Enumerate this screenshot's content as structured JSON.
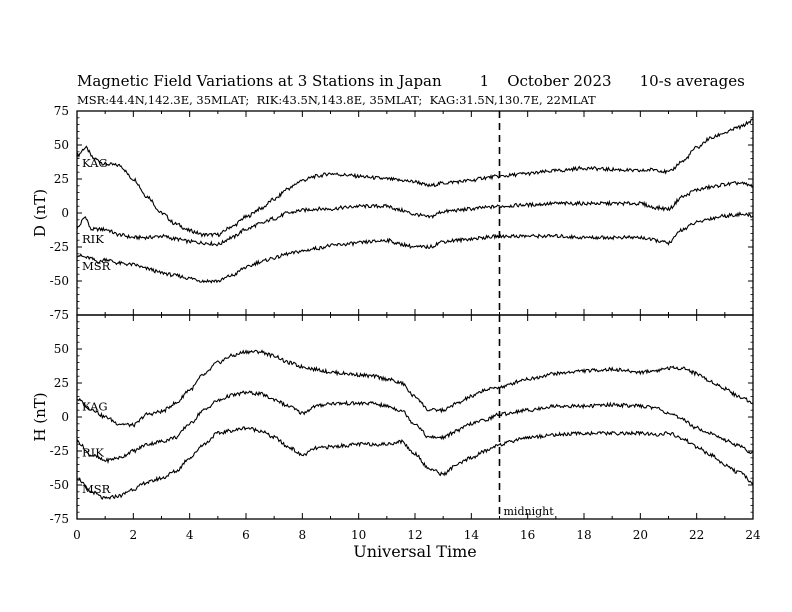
{
  "title": {
    "main": "Magnetic Field Variations at 3 Stations in Japan",
    "day": "1",
    "month_year": "October 2023",
    "averaging": "10-s averages"
  },
  "subtitle": "MSR:44.4N,142.3E, 35MLAT;  RIK:43.5N,143.8E, 35MLAT;  KAG:31.5N,130.7E, 22MLAT",
  "chart_data": [
    {
      "type": "line",
      "panel": "top",
      "ylabel": "D (nT)",
      "xlim": [
        0,
        24
      ],
      "ylim": [
        -75,
        75
      ],
      "yticks": [
        75,
        50,
        25,
        0,
        -25,
        -50,
        -75
      ],
      "series": [
        {
          "name": "KAG",
          "x": [
            0,
            0.3,
            0.6,
            1.0,
            1.5,
            2.0,
            2.5,
            3.0,
            3.5,
            4.0,
            4.5,
            5.0,
            5.5,
            6.0,
            6.5,
            7.0,
            7.5,
            8.0,
            8.5,
            9.0,
            9.5,
            10.0,
            10.5,
            11.0,
            11.5,
            12.0,
            12.5,
            13.0,
            13.5,
            14.0,
            14.5,
            15.0,
            16.0,
            17.0,
            18.0,
            19.0,
            20.0,
            20.5,
            21.0,
            21.5,
            22.0,
            22.5,
            23.0,
            23.5,
            24.0
          ],
          "y": [
            42,
            48,
            40,
            36,
            35,
            25,
            12,
            0,
            -8,
            -13,
            -16,
            -16,
            -10,
            -3,
            3,
            10,
            18,
            24,
            27,
            29,
            28,
            27,
            26,
            25,
            24,
            23,
            20,
            22,
            23,
            24,
            26,
            27,
            29,
            31,
            33,
            32,
            31,
            32,
            30,
            38,
            48,
            55,
            59,
            63,
            68
          ]
        },
        {
          "name": "RIK",
          "x": [
            0,
            0.3,
            0.5,
            1.0,
            1.5,
            2.0,
            2.5,
            3.0,
            3.5,
            4.0,
            4.5,
            5.0,
            5.5,
            6.0,
            6.5,
            7.0,
            7.5,
            8.0,
            8.5,
            9.0,
            9.5,
            10.0,
            10.5,
            11.0,
            11.5,
            12.0,
            12.5,
            13.0,
            13.5,
            14.0,
            14.5,
            15.0,
            16.0,
            17.0,
            18.0,
            19.0,
            20.0,
            20.5,
            21.0,
            21.5,
            22.0,
            22.5,
            23.0,
            23.5,
            24.0
          ],
          "y": [
            -11,
            -3,
            -12,
            -12,
            -16,
            -18,
            -18,
            -17,
            -19,
            -21,
            -22,
            -23,
            -18,
            -12,
            -8,
            -4,
            0,
            2,
            3,
            3,
            4,
            5,
            5,
            5,
            2,
            -1,
            -3,
            1,
            2,
            3,
            4,
            5,
            6,
            7,
            7,
            7,
            7,
            4,
            3,
            12,
            17,
            19,
            21,
            22,
            20
          ]
        },
        {
          "name": "MSR",
          "x": [
            0,
            0.4,
            0.8,
            1.0,
            1.5,
            2.0,
            2.5,
            3.0,
            3.5,
            4.0,
            4.5,
            5.0,
            5.5,
            6.0,
            6.5,
            7.0,
            7.5,
            8.0,
            8.5,
            9.0,
            9.5,
            10.0,
            10.5,
            11.0,
            11.5,
            12.0,
            12.5,
            13.0,
            13.5,
            14.0,
            14.5,
            15.0,
            16.0,
            17.0,
            18.0,
            19.0,
            20.0,
            20.5,
            21.0,
            21.5,
            22.0,
            22.5,
            23.0,
            23.5,
            24.0
          ],
          "y": [
            -31,
            -33,
            -36,
            -34,
            -37,
            -38,
            -41,
            -44,
            -46,
            -48,
            -50,
            -50,
            -46,
            -40,
            -36,
            -33,
            -30,
            -28,
            -26,
            -24,
            -23,
            -22,
            -21,
            -20,
            -23,
            -25,
            -25,
            -21,
            -20,
            -19,
            -18,
            -17,
            -17,
            -17,
            -18,
            -18,
            -18,
            -20,
            -22,
            -12,
            -7,
            -4,
            -2,
            -1,
            -2
          ]
        }
      ]
    },
    {
      "type": "line",
      "panel": "bottom",
      "ylabel": "H (nT)",
      "xlabel": "Universal Time",
      "xlim": [
        0,
        24
      ],
      "ylim": [
        -75,
        75
      ],
      "xticks": [
        0,
        2,
        4,
        6,
        8,
        10,
        12,
        14,
        16,
        18,
        20,
        22,
        24
      ],
      "yticks": [
        75,
        50,
        25,
        0,
        -25,
        -50,
        -75
      ],
      "annotation": {
        "x": 15,
        "label": "midnight",
        "style": "dashed"
      },
      "series": [
        {
          "name": "KAG",
          "x": [
            0,
            0.5,
            1.0,
            1.5,
            2.0,
            2.5,
            3.0,
            3.5,
            4.0,
            4.5,
            5.0,
            5.5,
            6.0,
            6.5,
            7.0,
            7.5,
            8.0,
            8.5,
            9.0,
            9.5,
            10.0,
            10.5,
            11.0,
            11.5,
            12.0,
            12.5,
            13.0,
            13.5,
            14.0,
            14.5,
            15.0,
            16.0,
            17.0,
            18.0,
            19.0,
            20.0,
            20.5,
            21.0,
            21.5,
            22.0,
            22.5,
            23.0,
            23.5,
            24.0
          ],
          "y": [
            13,
            6,
            0,
            -5,
            -6,
            2,
            4,
            10,
            20,
            31,
            40,
            45,
            48,
            48,
            45,
            40,
            37,
            35,
            33,
            32,
            31,
            30,
            28,
            25,
            15,
            5,
            5,
            10,
            15,
            20,
            22,
            28,
            32,
            34,
            35,
            33,
            34,
            36,
            36,
            32,
            26,
            21,
            15,
            11
          ]
        },
        {
          "name": "RIK",
          "x": [
            0,
            0.5,
            1.0,
            1.5,
            2.0,
            2.5,
            3.0,
            3.5,
            4.0,
            4.5,
            5.0,
            5.5,
            6.0,
            6.5,
            7.0,
            7.5,
            8.0,
            8.5,
            9.0,
            9.5,
            10.0,
            10.5,
            11.0,
            11.5,
            12.0,
            12.5,
            13.0,
            13.5,
            14.0,
            14.5,
            15.0,
            16.0,
            17.0,
            18.0,
            19.0,
            20.0,
            20.5,
            21.0,
            21.5,
            22.0,
            22.5,
            23.0,
            23.5,
            24.0
          ],
          "y": [
            -18,
            -28,
            -32,
            -30,
            -25,
            -20,
            -18,
            -15,
            -5,
            5,
            12,
            16,
            18,
            17,
            13,
            8,
            3,
            8,
            10,
            10,
            10,
            10,
            8,
            5,
            -5,
            -15,
            -15,
            -10,
            -5,
            -2,
            2,
            5,
            8,
            8,
            9,
            8,
            7,
            3,
            -2,
            -8,
            -12,
            -17,
            -21,
            -27
          ]
        },
        {
          "name": "MSR",
          "x": [
            0,
            0.5,
            1.0,
            1.5,
            2.0,
            2.5,
            3.0,
            3.5,
            4.0,
            4.5,
            5.0,
            5.5,
            6.0,
            6.5,
            7.0,
            7.5,
            8.0,
            8.5,
            9.0,
            9.5,
            10.0,
            10.5,
            11.0,
            11.5,
            12.0,
            12.5,
            13.0,
            13.5,
            14.0,
            14.5,
            15.0,
            16.0,
            17.0,
            18.0,
            19.0,
            20.0,
            20.5,
            21.0,
            21.5,
            22.0,
            22.5,
            23.0,
            23.5,
            24.0
          ],
          "y": [
            -45,
            -55,
            -60,
            -58,
            -53,
            -48,
            -45,
            -40,
            -30,
            -20,
            -12,
            -10,
            -8,
            -10,
            -15,
            -22,
            -28,
            -23,
            -22,
            -21,
            -20,
            -20,
            -20,
            -18,
            -27,
            -38,
            -42,
            -35,
            -30,
            -25,
            -20,
            -15,
            -13,
            -12,
            -12,
            -12,
            -13,
            -12,
            -16,
            -22,
            -28,
            -35,
            -41,
            -48
          ]
        }
      ]
    }
  ],
  "colors": {
    "line": "#000000",
    "background": "#ffffff"
  }
}
